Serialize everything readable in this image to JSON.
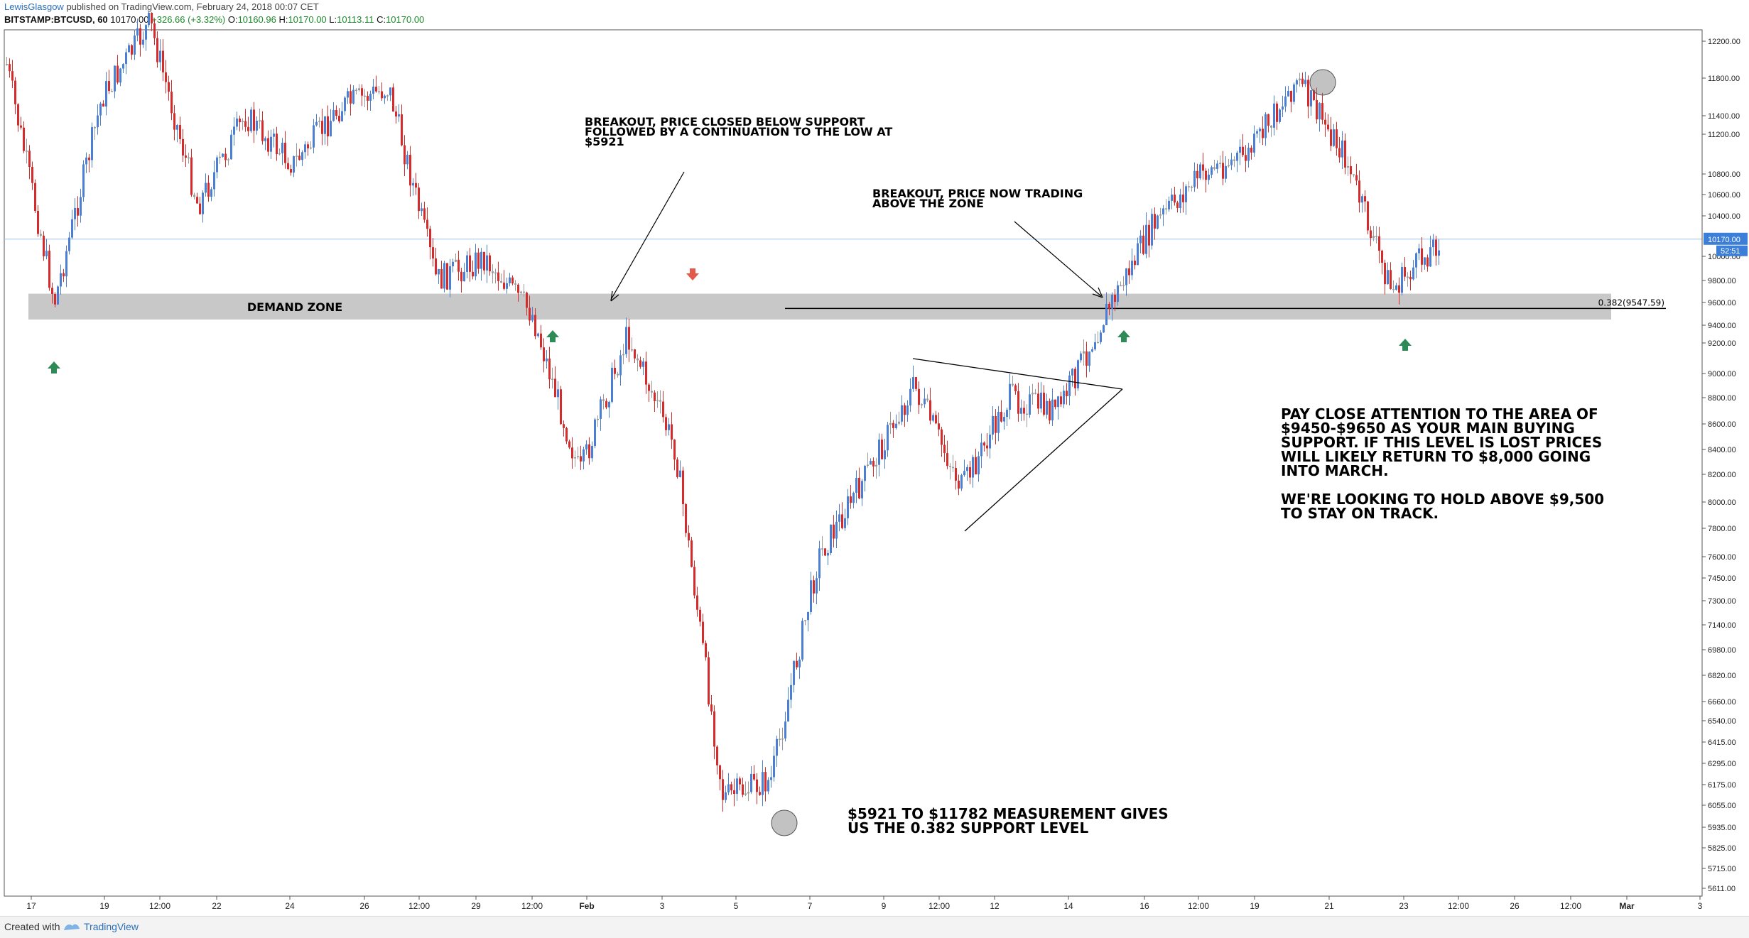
{
  "header": {
    "author": "LewisGlasgow",
    "published": "published on TradingView.com, February 24, 2018 00:07 CET",
    "symbol": "BITSTAMP:BTCUSD, 60",
    "last": "10170.00",
    "change": "+326.66 (+3.32%)",
    "open_label": "O:",
    "open": "10160.96",
    "high_label": "H:",
    "high": "10170.00",
    "low_label": "L:",
    "low": "10113.11",
    "close_label": "C:",
    "close": "10170.00"
  },
  "footer": {
    "created_with": "Created with",
    "brand": "TradingView"
  },
  "colors": {
    "up": "#4a7fd4",
    "down": "#d62b2b",
    "neutral": "#9a9a9a",
    "zone": "#c8c8c8",
    "price_line": "#9fc3ea",
    "price_badge": "#3b7fd8",
    "green_arrow": "#2e8b57",
    "red_arrow": "#e25a4a"
  },
  "chart_data": {
    "type": "candlestick",
    "y_axis_ticks": [
      "12200.00",
      "11800.00",
      "11400.00",
      "11200.00",
      "10800.00",
      "10600.00",
      "10400.00",
      "10000.00",
      "9800.00",
      "9600.00",
      "9400.00",
      "9200.00",
      "9000.00",
      "8800.00",
      "8600.00",
      "8400.00",
      "8200.00",
      "8000.00",
      "7800.00",
      "7600.00",
      "7450.00",
      "7300.00",
      "7140.00",
      "6980.00",
      "6820.00",
      "6660.00",
      "6540.00",
      "6415.00",
      "6295.00",
      "6175.00",
      "6055.00",
      "5935.00",
      "5825.00",
      "5715.00",
      "5611.00"
    ],
    "x_axis_ticks": [
      "17",
      "19",
      "12:00",
      "22",
      "24",
      "26",
      "12:00",
      "29",
      "12:00",
      "Feb",
      "3",
      "5",
      "7",
      "9",
      "12:00",
      "12",
      "14",
      "16",
      "12:00",
      "19",
      "21",
      "23",
      "12:00",
      "26",
      "12:00",
      "Mar",
      "3"
    ],
    "x_axis_bold": [
      "Feb",
      "Mar"
    ],
    "price_path": [
      {
        "t": "17",
        "p": 11950
      },
      {
        "t": "17",
        "p": 9600
      },
      {
        "t": "19",
        "p": 11600
      },
      {
        "t": "12:00",
        "p": 12400
      },
      {
        "t": "22",
        "p": 10500
      },
      {
        "t": "24",
        "p": 11400
      },
      {
        "t": "26",
        "p": 10900
      },
      {
        "t": "12:00",
        "p": 11500
      },
      {
        "t": "29",
        "p": 11700
      },
      {
        "t": "12:00",
        "p": 9800
      },
      {
        "t": "Feb",
        "p": 9990
      },
      {
        "t": "Feb",
        "p": 9500
      },
      {
        "t": "3",
        "p": 8200
      },
      {
        "t": "3",
        "p": 9300
      },
      {
        "t": "5",
        "p": 8400
      },
      {
        "t": "5",
        "p": 6100
      },
      {
        "t": "7",
        "p": 6200
      },
      {
        "t": "7",
        "p": 7600
      },
      {
        "t": "9",
        "p": 8200
      },
      {
        "t": "12:00",
        "p": 8900
      },
      {
        "t": "12",
        "p": 8100
      },
      {
        "t": "12",
        "p": 8800
      },
      {
        "t": "14",
        "p": 8700
      },
      {
        "t": "14",
        "p": 9500
      },
      {
        "t": "16",
        "p": 10300
      },
      {
        "t": "12:00",
        "p": 10800
      },
      {
        "t": "19",
        "p": 11000
      },
      {
        "t": "21",
        "p": 11782
      },
      {
        "t": "21",
        "p": 11000
      },
      {
        "t": "23",
        "p": 9700
      },
      {
        "t": "23",
        "p": 10170
      }
    ],
    "current_price": "10170.00",
    "countdown": "52:51",
    "fib_label": "0.382(9547.59)",
    "demand_zone": {
      "label": "DEMAND ZONE",
      "low": 9450,
      "high": 9680
    },
    "annotations": [
      {
        "id": "breakdown",
        "lines": [
          "BREAKOUT, PRICE CLOSED BELOW SUPPORT",
          "FOLLOWED BY A CONTINUATION TO THE LOW AT",
          "$5921"
        ]
      },
      {
        "id": "breakout",
        "lines": [
          "BREAKOUT, PRICE NOW TRADING",
          "ABOVE THE ZONE"
        ]
      },
      {
        "id": "plan",
        "lines": [
          "PAY CLOSE ATTENTION TO THE AREA OF",
          "$9450-$9650 AS YOUR MAIN BUYING",
          "SUPPORT. IF THIS LEVEL IS LOST PRICES",
          "WILL LIKELY RETURN TO $8,000 GOING",
          "INTO MARCH.",
          "",
          "WE'RE LOOKING TO HOLD ABOVE $9,500",
          "TO STAY ON TRACK."
        ]
      },
      {
        "id": "measure",
        "lines": [
          "$5921 TO $11782 MEASUREMENT GIVES",
          "US THE 0.382 SUPPORT LEVEL"
        ]
      }
    ]
  }
}
